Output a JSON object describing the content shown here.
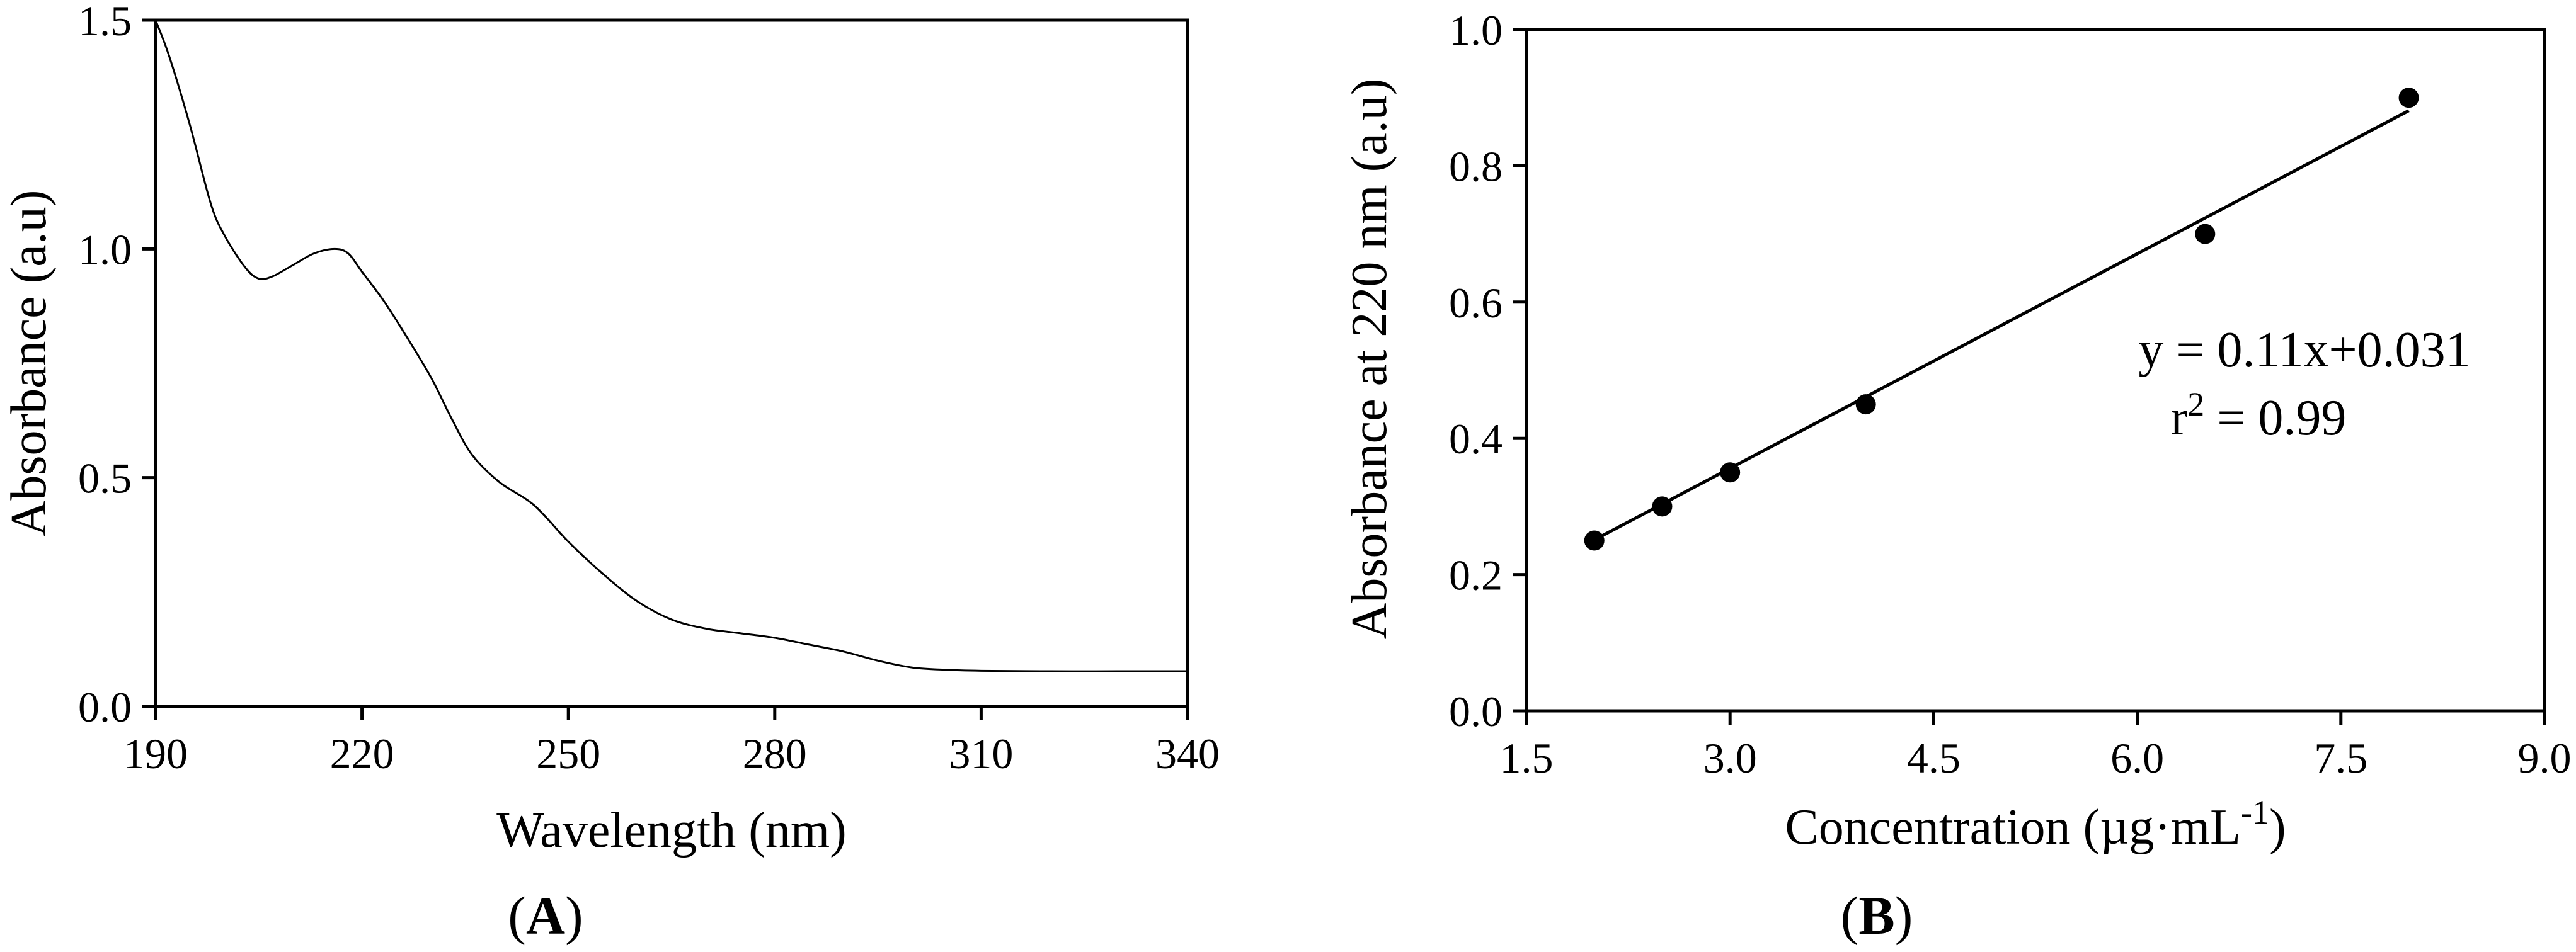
{
  "chart_data": [
    {
      "type": "line",
      "xlabel": "Wavelength (nm)",
      "ylabel": "Absorbance (a.u)",
      "xlim": [
        190,
        340
      ],
      "ylim": [
        0.0,
        1.5
      ],
      "xticks": [
        "190",
        "220",
        "250",
        "280",
        "310",
        "340"
      ],
      "yticks": [
        "0.0",
        "0.5",
        "1.0",
        "1.5"
      ],
      "panel_label": "A",
      "series": [
        {
          "x": [
            190,
            192,
            195,
            198,
            200,
            203,
            205,
            207,
            210,
            213,
            216,
            218,
            220,
            223,
            226,
            230,
            233,
            236,
            240,
            245,
            250,
            255,
            260,
            265,
            270,
            275,
            280,
            285,
            290,
            295,
            300,
            305,
            310,
            320,
            330,
            340
          ],
          "values": [
            1.5,
            1.42,
            1.27,
            1.1,
            1.03,
            0.96,
            0.935,
            0.94,
            0.965,
            0.99,
            1.0,
            0.99,
            0.95,
            0.89,
            0.82,
            0.72,
            0.63,
            0.55,
            0.49,
            0.44,
            0.36,
            0.29,
            0.23,
            0.19,
            0.17,
            0.16,
            0.15,
            0.135,
            0.12,
            0.1,
            0.085,
            0.08,
            0.078,
            0.077,
            0.077,
            0.077
          ]
        }
      ]
    },
    {
      "type": "scatter",
      "xlabel": "Concentration (µg·mL",
      "xlabel_sup": "-1",
      "xlabel_end": ")",
      "ylabel": "Absorbance at 220 nm (a.u)",
      "xlim": [
        1.5,
        9.0
      ],
      "ylim": [
        0.0,
        1.0
      ],
      "xticks": [
        "1.5",
        "3.0",
        "4.5",
        "6.0",
        "7.5",
        "9.0"
      ],
      "yticks": [
        "0.0",
        "0.2",
        "0.4",
        "0.6",
        "0.8",
        "1.0"
      ],
      "panel_label": "B",
      "series": [
        {
          "x": [
            2.0,
            2.5,
            3.0,
            4.0,
            6.5,
            8.0
          ],
          "values": [
            0.25,
            0.3,
            0.35,
            0.45,
            0.7,
            0.9
          ]
        }
      ],
      "fit_line": {
        "x": [
          2.0,
          8.0
        ],
        "values": [
          0.251,
          0.881
        ]
      },
      "equation": "y = 0.11x+0.031",
      "r2_prefix": "r",
      "r2_sup": "2",
      "r2_value": " = 0.99"
    }
  ]
}
